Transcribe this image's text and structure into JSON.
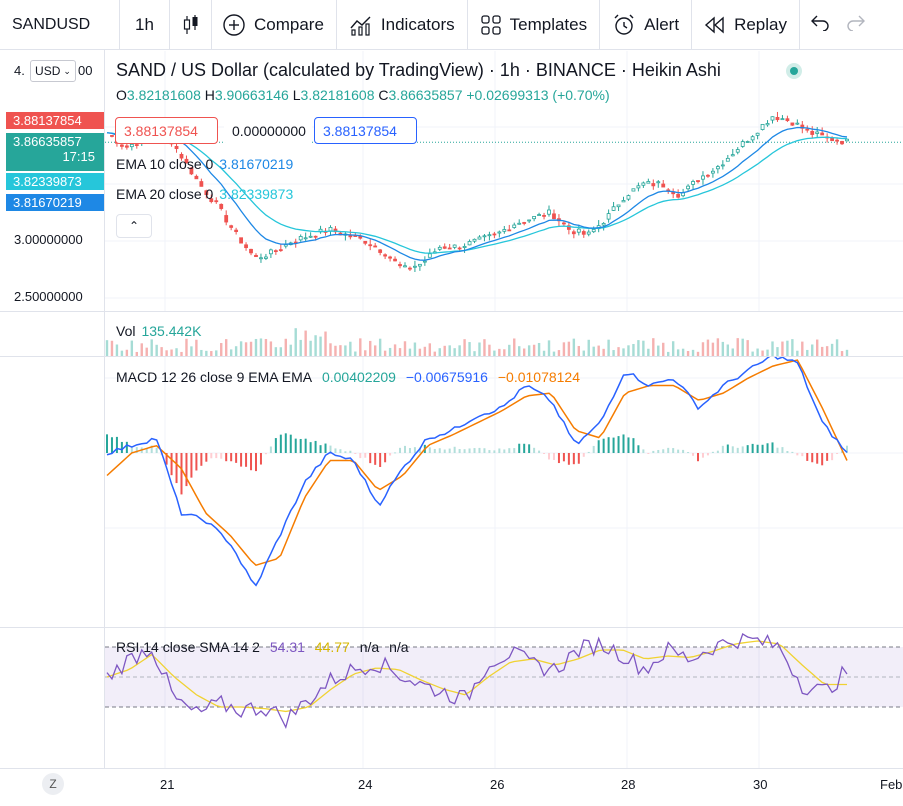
{
  "toolbar": {
    "symbol": "SANDUSD",
    "interval": "1h",
    "compare_label": "Compare",
    "indicators_label": "Indicators",
    "templates_label": "Templates",
    "alert_label": "Alert",
    "replay_label": "Replay"
  },
  "header": {
    "title": "SAND / US Dollar (calculated by TradingView) · 1h · BINANCE · Heikin Ashi",
    "ohlc": {
      "o_label": "O",
      "o": "3.82181608",
      "h_label": "H",
      "h": "3.90663146",
      "l_label": "L",
      "l": "3.82181608",
      "c_label": "C",
      "c": "3.86635857",
      "change": "+0.02699313 (+0.70%)"
    },
    "sell_price": "3.88137854",
    "spread": "0.00000000",
    "buy_price": "3.88137854",
    "ema10_label": "EMA 10 close 0",
    "ema10_value": "3.81670219",
    "ema20_label": "EMA 20 close 0",
    "ema20_value": "3.82339873"
  },
  "price_scale": {
    "prefix": "4.",
    "suffix": "00",
    "currency": "USD",
    "ticks": [
      "3.00000000",
      "2.50000000"
    ],
    "flags": {
      "sell": "3.88137854",
      "last": "3.86635857",
      "symbol_tag": "SANDUSD",
      "countdown": "17:15",
      "ema20": "3.82339873",
      "ema10": "3.81670219"
    }
  },
  "volume": {
    "label": "Vol",
    "value": "135.442K"
  },
  "macd": {
    "label": "MACD 12 26 close 9 EMA EMA",
    "hist": "0.00402209",
    "macd": "−0.00675916",
    "signal": "−0.01078124"
  },
  "rsi": {
    "label": "RSI 14 close SMA 14 2",
    "rsi": "54.31",
    "sma": "44.77",
    "na1": "n/a",
    "na2": "n/a"
  },
  "time_axis": {
    "labels": [
      "21",
      "24",
      "26",
      "28",
      "30",
      "Feb"
    ],
    "z": "Z"
  },
  "colors": {
    "up": "#26a69a",
    "down": "#ef5350",
    "ema10": "#1e88e5",
    "ema20": "#26c6da",
    "macd": "#2962ff",
    "signal": "#f57c00",
    "rsi": "#7e57c2",
    "rsi_sma": "#f0d232"
  },
  "chart_data": [
    {
      "type": "candlestick",
      "style": "Heikin Ashi",
      "price_ticks": [
        "3.00000000",
        "2.50000000"
      ],
      "x_ticks": [
        "21",
        "24",
        "26",
        "28",
        "30",
        "Feb"
      ],
      "close_path": [
        3.95,
        3.82,
        3.9,
        4.0,
        3.75,
        3.5,
        3.3,
        3.05,
        2.85,
        2.9,
        3.0,
        3.05,
        3.1,
        3.05,
        3.0,
        2.9,
        2.75,
        2.8,
        2.95,
        2.95,
        3.0,
        3.05,
        3.15,
        3.2,
        3.25,
        3.1,
        3.05,
        3.2,
        3.4,
        3.5,
        3.5,
        3.4,
        3.55,
        3.65,
        3.8,
        3.95,
        4.1,
        4.05,
        3.95,
        3.9,
        3.87
      ],
      "ema10_last": 3.81670219,
      "ema20_last": 3.82339873
    },
    {
      "type": "bar",
      "name": "Vol",
      "last": "135.442K"
    },
    {
      "type": "line",
      "name": "MACD 12 26 close 9 EMA EMA",
      "macd_path": [
        0.0,
        0.05,
        0.1,
        -0.4,
        -0.45,
        -0.6,
        -0.9,
        -0.55,
        -0.2,
        0.0,
        -0.05,
        -0.35,
        -0.1,
        0.1,
        0.15,
        0.25,
        0.3,
        0.45,
        0.35,
        0.05,
        0.2,
        0.55,
        0.45,
        0.5,
        0.3,
        0.45,
        0.55,
        0.65,
        0.6,
        0.2,
        0.0
      ],
      "signal_path": [
        -0.15,
        0.0,
        0.05,
        -0.1,
        -0.4,
        -0.55,
        -0.75,
        -0.7,
        -0.3,
        -0.05,
        -0.05,
        -0.25,
        -0.15,
        0.05,
        0.12,
        0.2,
        0.28,
        0.38,
        0.4,
        0.15,
        0.1,
        0.4,
        0.45,
        0.45,
        0.35,
        0.4,
        0.5,
        0.58,
        0.62,
        0.3,
        -0.05
      ]
    },
    {
      "type": "line",
      "name": "RSI 14 close SMA 14 2",
      "ylim": [
        0,
        100
      ],
      "bands": [
        30,
        50,
        70
      ],
      "rsi_path": [
        50,
        62,
        70,
        35,
        25,
        32,
        28,
        30,
        22,
        35,
        48,
        55,
        60,
        52,
        45,
        40,
        35,
        60,
        66,
        58,
        55,
        68,
        72,
        65,
        55,
        68,
        62,
        70,
        75,
        74,
        70,
        45,
        40,
        54
      ],
      "sma_path": [
        50,
        55,
        65,
        50,
        38,
        30,
        30,
        29,
        27,
        30,
        42,
        52,
        56,
        55,
        48,
        42,
        38,
        50,
        60,
        62,
        58,
        62,
        68,
        68,
        62,
        64,
        63,
        67,
        72,
        74,
        72,
        58,
        45,
        45
      ]
    }
  ]
}
